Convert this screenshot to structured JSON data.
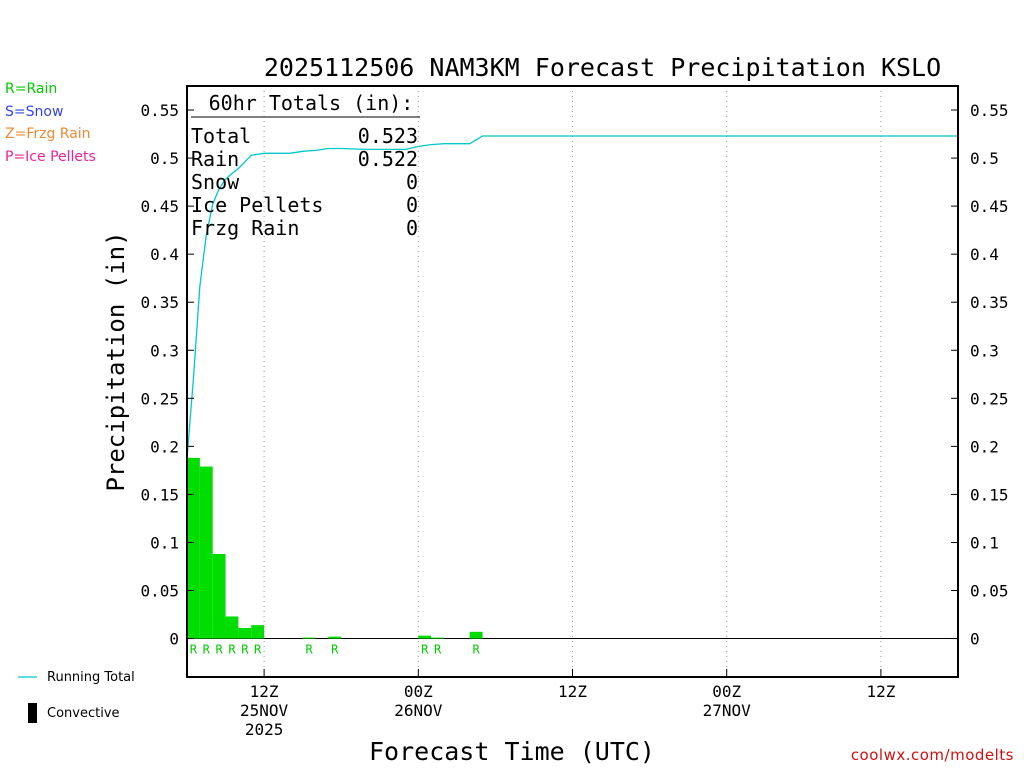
{
  "chart_data": {
    "type": "bar",
    "title": "2025112506 NAM3KM Forecast Precipitation KSLO",
    "xlabel": "Forecast Time (UTC)",
    "ylabel": "Precipitation (in)",
    "x_unit": "forecast hour from 06Z 25NOV 2025",
    "xlim": [
      0,
      60
    ],
    "ylim": [
      -0.04,
      0.575
    ],
    "y_ticks": [
      0,
      0.05,
      0.1,
      0.15,
      0.2,
      0.25,
      0.3,
      0.35,
      0.4,
      0.45,
      0.5,
      0.55
    ],
    "y_tick_labels": [
      "0",
      "0.05",
      "0.1",
      "0.15",
      "0.2",
      "0.25",
      "0.3",
      "0.35",
      "0.4",
      "0.45",
      "0.5",
      "0.55"
    ],
    "x_ticks": [
      {
        "hour": 6,
        "lines": [
          "12Z",
          "25NOV",
          "2025"
        ]
      },
      {
        "hour": 18,
        "lines": [
          "00Z",
          "26NOV"
        ]
      },
      {
        "hour": 30,
        "lines": [
          "12Z"
        ]
      },
      {
        "hour": 42,
        "lines": [
          "00Z",
          "27NOV"
        ]
      },
      {
        "hour": 54,
        "lines": [
          "12Z"
        ]
      }
    ],
    "grid": "vertical dotted at 12-hourly ticks",
    "series": [
      {
        "name": "Rain",
        "kind": "bar",
        "color": "#00dd00",
        "bars": [
          {
            "start": 0,
            "end": 1,
            "value": 0.188
          },
          {
            "start": 1,
            "end": 2,
            "value": 0.179
          },
          {
            "start": 2,
            "end": 3,
            "value": 0.088
          },
          {
            "start": 3,
            "end": 4,
            "value": 0.023
          },
          {
            "start": 4,
            "end": 5,
            "value": 0.011
          },
          {
            "start": 5,
            "end": 6,
            "value": 0.014
          },
          {
            "start": 9,
            "end": 10,
            "value": 0.001
          },
          {
            "start": 11,
            "end": 12,
            "value": 0.002
          },
          {
            "start": 18,
            "end": 19,
            "value": 0.003
          },
          {
            "start": 19,
            "end": 20,
            "value": 0.001
          },
          {
            "start": 22,
            "end": 23,
            "value": 0.007
          }
        ]
      },
      {
        "name": "Running Total",
        "kind": "line",
        "color": "#00c8c8",
        "x": [
          0,
          0.5,
          1,
          1.5,
          2,
          2.5,
          3,
          3.5,
          4,
          5,
          6,
          8,
          9,
          10,
          11,
          12,
          14,
          17,
          18,
          19,
          20,
          21,
          22,
          23,
          60
        ],
        "y": [
          0.188,
          0.27,
          0.366,
          0.42,
          0.452,
          0.468,
          0.478,
          0.484,
          0.489,
          0.503,
          0.505,
          0.505,
          0.507,
          0.508,
          0.51,
          0.51,
          0.509,
          0.509,
          0.512,
          0.514,
          0.515,
          0.515,
          0.515,
          0.523,
          0.523
        ]
      }
    ],
    "precip_type_labels": [
      {
        "hour": 0.5,
        "label": "R"
      },
      {
        "hour": 1.5,
        "label": "R"
      },
      {
        "hour": 2.5,
        "label": "R"
      },
      {
        "hour": 3.5,
        "label": "R"
      },
      {
        "hour": 4.5,
        "label": "R"
      },
      {
        "hour": 5.5,
        "label": "R"
      },
      {
        "hour": 9.5,
        "label": "R"
      },
      {
        "hour": 11.5,
        "label": "R"
      },
      {
        "hour": 18.5,
        "label": "R"
      },
      {
        "hour": 19.5,
        "label": "R"
      },
      {
        "hour": 22.5,
        "label": "R"
      }
    ],
    "totals_box": {
      "header": "60hr Totals (in):",
      "rows": [
        {
          "label": "Total",
          "value": "0.523"
        },
        {
          "label": "Rain",
          "value": "0.522"
        },
        {
          "label": "Snow",
          "value": "0"
        },
        {
          "label": "Ice Pellets",
          "value": "0"
        },
        {
          "label": "Frzg Rain",
          "value": "0"
        }
      ]
    }
  },
  "type_legend": [
    {
      "text": "R=Rain",
      "color": "#00cc00"
    },
    {
      "text": "S=Snow",
      "color": "#3344ee"
    },
    {
      "text": "Z=Frzg Rain",
      "color": "#ee8833"
    },
    {
      "text": "P=Ice Pellets",
      "color": "#ee2299"
    }
  ],
  "lower_legend": {
    "running_total": "Running Total",
    "convective": "Convective"
  },
  "credit": "coolwx.com/modelts"
}
